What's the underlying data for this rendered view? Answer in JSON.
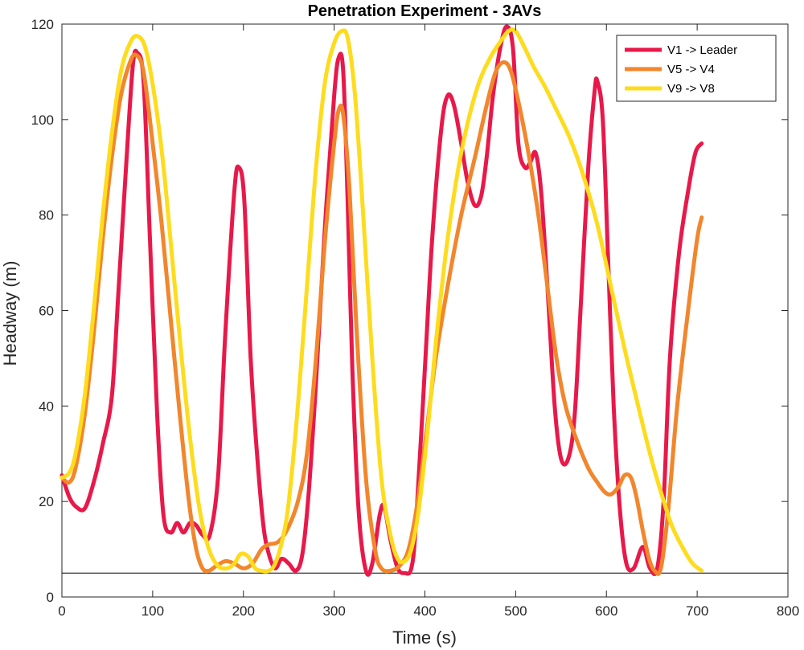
{
  "chart_data": {
    "type": "line",
    "title": "Penetration Experiment - 3AVs",
    "xlabel": "Time (s)",
    "ylabel": "Headway (m)",
    "xlim": [
      0,
      800
    ],
    "ylim": [
      0,
      120
    ],
    "xticks": [
      0,
      100,
      200,
      300,
      400,
      500,
      600,
      700,
      800
    ],
    "yticks": [
      0,
      20,
      40,
      60,
      80,
      100,
      120
    ],
    "grid": false,
    "legend_position": "top-right",
    "reference_line": {
      "y": 5
    },
    "series": [
      {
        "name": "V1 -> Leader",
        "color": "#E8194A",
        "points": [
          [
            0,
            25.5
          ],
          [
            8,
            21
          ],
          [
            15,
            19
          ],
          [
            25,
            18.5
          ],
          [
            35,
            24
          ],
          [
            45,
            32
          ],
          [
            55,
            42
          ],
          [
            62,
            63
          ],
          [
            70,
            88
          ],
          [
            78,
            111
          ],
          [
            83,
            114
          ],
          [
            90,
            108
          ],
          [
            97,
            75
          ],
          [
            105,
            38
          ],
          [
            112,
            17
          ],
          [
            120,
            13.5
          ],
          [
            127,
            15.5
          ],
          [
            134,
            13.5
          ],
          [
            141,
            15.5
          ],
          [
            148,
            15
          ],
          [
            155,
            13
          ],
          [
            163,
            13
          ],
          [
            172,
            25
          ],
          [
            180,
            55
          ],
          [
            190,
            85
          ],
          [
            195,
            90
          ],
          [
            201,
            83
          ],
          [
            208,
            50
          ],
          [
            215,
            30
          ],
          [
            222,
            15
          ],
          [
            228,
            9
          ],
          [
            235,
            6
          ],
          [
            242,
            8
          ],
          [
            250,
            7
          ],
          [
            258,
            5.5
          ],
          [
            265,
            9
          ],
          [
            272,
            22
          ],
          [
            280,
            45
          ],
          [
            290,
            78
          ],
          [
            300,
            105
          ],
          [
            305,
            113
          ],
          [
            310,
            110
          ],
          [
            315,
            82
          ],
          [
            320,
            48
          ],
          [
            327,
            18
          ],
          [
            335,
            5.5
          ],
          [
            342,
            7
          ],
          [
            350,
            17
          ],
          [
            355,
            19
          ],
          [
            362,
            12
          ],
          [
            370,
            6
          ],
          [
            378,
            5
          ],
          [
            385,
            6
          ],
          [
            390,
            15
          ],
          [
            400,
            48
          ],
          [
            408,
            75
          ],
          [
            418,
            98
          ],
          [
            425,
            105
          ],
          [
            432,
            103
          ],
          [
            440,
            95
          ],
          [
            447,
            87
          ],
          [
            455,
            82
          ],
          [
            462,
            84
          ],
          [
            468,
            92
          ],
          [
            475,
            105
          ],
          [
            483,
            115
          ],
          [
            490,
            119.5
          ],
          [
            497,
            115
          ],
          [
            503,
            95
          ],
          [
            510,
            90
          ],
          [
            516,
            91
          ],
          [
            522,
            93
          ],
          [
            528,
            85
          ],
          [
            535,
            65
          ],
          [
            543,
            40
          ],
          [
            550,
            29
          ],
          [
            558,
            29
          ],
          [
            565,
            38
          ],
          [
            572,
            62
          ],
          [
            580,
            90
          ],
          [
            587,
            106
          ],
          [
            590,
            108
          ],
          [
            596,
            100
          ],
          [
            602,
            70
          ],
          [
            608,
            40
          ],
          [
            615,
            18
          ],
          [
            622,
            7
          ],
          [
            630,
            6
          ],
          [
            638,
            10
          ],
          [
            642,
            10
          ],
          [
            648,
            6
          ],
          [
            656,
            6
          ],
          [
            663,
            20
          ],
          [
            670,
            50
          ],
          [
            680,
            72
          ],
          [
            690,
            85
          ],
          [
            698,
            93
          ],
          [
            705,
            95
          ]
        ]
      },
      {
        "name": "V5 -> V4",
        "color": "#F2862C",
        "points": [
          [
            0,
            25
          ],
          [
            8,
            24
          ],
          [
            15,
            27
          ],
          [
            25,
            38
          ],
          [
            35,
            55
          ],
          [
            45,
            75
          ],
          [
            55,
            92
          ],
          [
            65,
            105
          ],
          [
            75,
            112
          ],
          [
            82,
            113.5
          ],
          [
            90,
            110
          ],
          [
            100,
            95
          ],
          [
            110,
            78
          ],
          [
            120,
            58
          ],
          [
            130,
            38
          ],
          [
            140,
            20
          ],
          [
            148,
            10
          ],
          [
            155,
            6
          ],
          [
            162,
            5.5
          ],
          [
            170,
            6.5
          ],
          [
            180,
            7.5
          ],
          [
            190,
            7
          ],
          [
            200,
            6
          ],
          [
            210,
            7
          ],
          [
            220,
            10
          ],
          [
            228,
            11
          ],
          [
            238,
            11.5
          ],
          [
            248,
            14
          ],
          [
            260,
            20
          ],
          [
            270,
            30
          ],
          [
            280,
            50
          ],
          [
            290,
            75
          ],
          [
            300,
            95
          ],
          [
            305,
            102
          ],
          [
            310,
            101
          ],
          [
            317,
            85
          ],
          [
            325,
            55
          ],
          [
            335,
            25
          ],
          [
            345,
            10
          ],
          [
            352,
            6
          ],
          [
            362,
            5.5
          ],
          [
            372,
            6.5
          ],
          [
            382,
            10
          ],
          [
            392,
            20
          ],
          [
            402,
            35
          ],
          [
            412,
            50
          ],
          [
            425,
            65
          ],
          [
            440,
            80
          ],
          [
            455,
            92
          ],
          [
            468,
            103
          ],
          [
            478,
            110
          ],
          [
            487,
            112
          ],
          [
            495,
            110
          ],
          [
            505,
            102
          ],
          [
            515,
            92
          ],
          [
            525,
            80
          ],
          [
            535,
            65
          ],
          [
            545,
            50
          ],
          [
            555,
            40
          ],
          [
            567,
            33
          ],
          [
            580,
            27
          ],
          [
            590,
            24
          ],
          [
            598,
            22
          ],
          [
            605,
            21.5
          ],
          [
            613,
            23
          ],
          [
            620,
            25.5
          ],
          [
            627,
            25
          ],
          [
            633,
            21
          ],
          [
            640,
            14
          ],
          [
            647,
            8
          ],
          [
            653,
            5.5
          ],
          [
            660,
            6
          ],
          [
            668,
            18
          ],
          [
            678,
            40
          ],
          [
            690,
            60
          ],
          [
            700,
            75
          ],
          [
            705,
            79.5
          ]
        ]
      },
      {
        "name": "V9 -> V8",
        "color": "#FDDC1E",
        "points": [
          [
            0,
            25
          ],
          [
            8,
            26
          ],
          [
            15,
            30
          ],
          [
            25,
            42
          ],
          [
            35,
            60
          ],
          [
            45,
            80
          ],
          [
            55,
            97
          ],
          [
            65,
            110
          ],
          [
            75,
            116
          ],
          [
            83,
            117.5
          ],
          [
            92,
            115
          ],
          [
            102,
            105
          ],
          [
            112,
            90
          ],
          [
            122,
            70
          ],
          [
            132,
            50
          ],
          [
            142,
            32
          ],
          [
            152,
            18
          ],
          [
            162,
            10
          ],
          [
            172,
            6.5
          ],
          [
            182,
            6
          ],
          [
            190,
            7
          ],
          [
            197,
            9
          ],
          [
            205,
            8.5
          ],
          [
            213,
            6
          ],
          [
            220,
            5.5
          ],
          [
            228,
            5.5
          ],
          [
            235,
            7
          ],
          [
            243,
            12
          ],
          [
            250,
            20
          ],
          [
            260,
            40
          ],
          [
            270,
            65
          ],
          [
            280,
            90
          ],
          [
            290,
            108
          ],
          [
            300,
            116
          ],
          [
            308,
            118.5
          ],
          [
            315,
            117
          ],
          [
            323,
            105
          ],
          [
            332,
            80
          ],
          [
            342,
            50
          ],
          [
            352,
            25
          ],
          [
            362,
            13
          ],
          [
            370,
            8
          ],
          [
            378,
            7.5
          ],
          [
            385,
            10
          ],
          [
            393,
            18
          ],
          [
            403,
            35
          ],
          [
            413,
            55
          ],
          [
            425,
            75
          ],
          [
            437,
            90
          ],
          [
            448,
            100
          ],
          [
            460,
            108
          ],
          [
            472,
            113
          ],
          [
            482,
            116
          ],
          [
            492,
            118.5
          ],
          [
            500,
            118.5
          ],
          [
            510,
            115
          ],
          [
            520,
            111
          ],
          [
            532,
            107
          ],
          [
            545,
            102
          ],
          [
            560,
            96
          ],
          [
            575,
            88
          ],
          [
            590,
            78
          ],
          [
            605,
            65
          ],
          [
            620,
            52
          ],
          [
            635,
            40
          ],
          [
            648,
            30
          ],
          [
            660,
            22
          ],
          [
            672,
            15
          ],
          [
            685,
            10
          ],
          [
            695,
            7
          ],
          [
            705,
            5.5
          ]
        ]
      }
    ]
  }
}
